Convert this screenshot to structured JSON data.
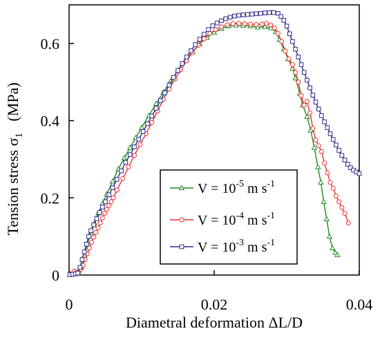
{
  "chart_data": {
    "type": "line",
    "title": "",
    "xlabel": "Diametral deformation   ΔL/D",
    "ylabel": "Tension stress  σ_1  (MPa)",
    "ylabel_parts": {
      "main": "Tension stress  σ",
      "sub": "1",
      "unit": "(MPa)"
    },
    "xlim": [
      0,
      0.04
    ],
    "ylim": [
      0,
      0.7
    ],
    "x_ticks": [
      0,
      0.02,
      0.04
    ],
    "x_tick_labels": [
      "0",
      "0.02",
      "0.04"
    ],
    "y_ticks": [
      0,
      0.2,
      0.4,
      0.6
    ],
    "y_tick_labels": [
      "0",
      "0.2",
      "0.4",
      "0.6"
    ],
    "grid": false,
    "legend_position": "lower-center",
    "series": [
      {
        "name": "V = 10^-5 m s^-1",
        "legend": {
          "pre": "V = 10",
          "exp": "-5",
          "mid": "m s",
          "exp2": "-1"
        },
        "color": "#1e8a1e",
        "marker": "triangle",
        "points": [
          [
            0.0001,
            0.001
          ],
          [
            0.0005,
            0.004
          ],
          [
            0.0009,
            0.005
          ],
          [
            0.0013,
            0.005
          ],
          [
            0.0017,
            0.02
          ],
          [
            0.0021,
            0.05
          ],
          [
            0.0026,
            0.085
          ],
          [
            0.003,
            0.11
          ],
          [
            0.0035,
            0.135
          ],
          [
            0.004,
            0.16
          ],
          [
            0.0046,
            0.185
          ],
          [
            0.0052,
            0.21
          ],
          [
            0.006,
            0.243
          ],
          [
            0.0068,
            0.275
          ],
          [
            0.0076,
            0.303
          ],
          [
            0.0084,
            0.33
          ],
          [
            0.0092,
            0.356
          ],
          [
            0.01,
            0.382
          ],
          [
            0.011,
            0.413
          ],
          [
            0.012,
            0.444
          ],
          [
            0.013,
            0.474
          ],
          [
            0.014,
            0.503
          ],
          [
            0.015,
            0.53
          ],
          [
            0.016,
            0.555
          ],
          [
            0.017,
            0.578
          ],
          [
            0.018,
            0.599
          ],
          [
            0.019,
            0.615
          ],
          [
            0.02,
            0.628
          ],
          [
            0.021,
            0.638
          ],
          [
            0.022,
            0.645
          ],
          [
            0.023,
            0.647
          ],
          [
            0.024,
            0.646
          ],
          [
            0.025,
            0.645
          ],
          [
            0.026,
            0.642
          ],
          [
            0.027,
            0.643
          ],
          [
            0.0278,
            0.64
          ],
          [
            0.0285,
            0.63
          ],
          [
            0.029,
            0.61
          ],
          [
            0.0296,
            0.585
          ],
          [
            0.0302,
            0.56
          ],
          [
            0.0308,
            0.535
          ],
          [
            0.0312,
            0.51
          ],
          [
            0.0318,
            0.47
          ],
          [
            0.0322,
            0.44
          ],
          [
            0.0328,
            0.41
          ],
          [
            0.0333,
            0.375
          ],
          [
            0.0338,
            0.33
          ],
          [
            0.0343,
            0.28
          ],
          [
            0.0347,
            0.24
          ],
          [
            0.0351,
            0.19
          ],
          [
            0.0355,
            0.145
          ],
          [
            0.0359,
            0.1
          ],
          [
            0.0363,
            0.07
          ],
          [
            0.0367,
            0.058
          ],
          [
            0.037,
            0.052
          ]
        ]
      },
      {
        "name": "V = 10^-4 m s^-1",
        "legend": {
          "pre": "V = 10",
          "exp": "-4",
          "mid": "m s",
          "exp2": "-1"
        },
        "color": "#e8312f",
        "marker": "circle",
        "points": [
          [
            0.0003,
            0.003
          ],
          [
            0.0007,
            0.01
          ],
          [
            0.001,
            0.008
          ],
          [
            0.0013,
            0.007
          ],
          [
            0.0016,
            0.015
          ],
          [
            0.0019,
            0.025
          ],
          [
            0.0022,
            0.04
          ],
          [
            0.0025,
            0.055
          ],
          [
            0.0028,
            0.07
          ],
          [
            0.0031,
            0.085
          ],
          [
            0.0034,
            0.098
          ],
          [
            0.0037,
            0.11
          ],
          [
            0.004,
            0.122
          ],
          [
            0.0043,
            0.135
          ],
          [
            0.0046,
            0.148
          ],
          [
            0.0049,
            0.16
          ],
          [
            0.0052,
            0.17
          ],
          [
            0.0055,
            0.18
          ],
          [
            0.0058,
            0.19
          ],
          [
            0.0061,
            0.2
          ],
          [
            0.0066,
            0.22
          ],
          [
            0.0074,
            0.25
          ],
          [
            0.0082,
            0.28
          ],
          [
            0.009,
            0.31
          ],
          [
            0.0098,
            0.338
          ],
          [
            0.0106,
            0.366
          ],
          [
            0.0114,
            0.395
          ],
          [
            0.0122,
            0.425
          ],
          [
            0.013,
            0.455
          ],
          [
            0.0138,
            0.482
          ],
          [
            0.0146,
            0.508
          ],
          [
            0.0154,
            0.532
          ],
          [
            0.0162,
            0.555
          ],
          [
            0.017,
            0.576
          ],
          [
            0.0178,
            0.595
          ],
          [
            0.0186,
            0.612
          ],
          [
            0.0194,
            0.626
          ],
          [
            0.0202,
            0.636
          ],
          [
            0.021,
            0.643
          ],
          [
            0.0218,
            0.648
          ],
          [
            0.0226,
            0.651
          ],
          [
            0.0234,
            0.652
          ],
          [
            0.0242,
            0.651
          ],
          [
            0.025,
            0.65
          ],
          [
            0.0258,
            0.649
          ],
          [
            0.0266,
            0.65
          ],
          [
            0.0272,
            0.652
          ],
          [
            0.0278,
            0.648
          ],
          [
            0.0283,
            0.64
          ],
          [
            0.0288,
            0.626
          ],
          [
            0.0293,
            0.605
          ],
          [
            0.0298,
            0.58
          ],
          [
            0.0303,
            0.56
          ],
          [
            0.0308,
            0.545
          ],
          [
            0.0312,
            0.525
          ],
          [
            0.0316,
            0.5
          ],
          [
            0.032,
            0.465
          ],
          [
            0.0324,
            0.44
          ],
          [
            0.0328,
            0.45
          ],
          [
            0.0332,
            0.42
          ],
          [
            0.0336,
            0.38
          ],
          [
            0.034,
            0.35
          ],
          [
            0.0344,
            0.335
          ],
          [
            0.0348,
            0.32
          ],
          [
            0.0352,
            0.29
          ],
          [
            0.0356,
            0.265
          ],
          [
            0.036,
            0.24
          ],
          [
            0.0364,
            0.225
          ],
          [
            0.0368,
            0.205
          ],
          [
            0.0372,
            0.19
          ],
          [
            0.0376,
            0.175
          ],
          [
            0.038,
            0.16
          ],
          [
            0.0385,
            0.135
          ]
        ]
      },
      {
        "name": "V = 10^-3 m s^-1",
        "legend": {
          "pre": "V = 10",
          "exp": "-3",
          "mid": "m s",
          "exp2": "-1"
        },
        "color": "#2e2a8a",
        "marker": "square",
        "points": [
          [
            0.0001,
            0.001
          ],
          [
            0.0005,
            0.002
          ],
          [
            0.0009,
            0.003
          ],
          [
            0.0012,
            0.005
          ],
          [
            0.0015,
            0.02
          ],
          [
            0.0018,
            0.04
          ],
          [
            0.0021,
            0.06
          ],
          [
            0.0024,
            0.08
          ],
          [
            0.0027,
            0.1
          ],
          [
            0.003,
            0.115
          ],
          [
            0.0034,
            0.13
          ],
          [
            0.0038,
            0.146
          ],
          [
            0.0042,
            0.162
          ],
          [
            0.0046,
            0.176
          ],
          [
            0.005,
            0.19
          ],
          [
            0.0055,
            0.208
          ],
          [
            0.006,
            0.226
          ],
          [
            0.0066,
            0.248
          ],
          [
            0.0072,
            0.27
          ],
          [
            0.0078,
            0.292
          ],
          [
            0.0084,
            0.312
          ],
          [
            0.009,
            0.332
          ],
          [
            0.0096,
            0.352
          ],
          [
            0.0102,
            0.372
          ],
          [
            0.0108,
            0.392
          ],
          [
            0.0114,
            0.412
          ],
          [
            0.012,
            0.432
          ],
          [
            0.0126,
            0.452
          ],
          [
            0.0132,
            0.472
          ],
          [
            0.0138,
            0.492
          ],
          [
            0.0144,
            0.512
          ],
          [
            0.015,
            0.53
          ],
          [
            0.0156,
            0.548
          ],
          [
            0.0162,
            0.565
          ],
          [
            0.0168,
            0.581
          ],
          [
            0.0174,
            0.597
          ],
          [
            0.018,
            0.611
          ],
          [
            0.0186,
            0.624
          ],
          [
            0.0192,
            0.636
          ],
          [
            0.0198,
            0.646
          ],
          [
            0.0204,
            0.653
          ],
          [
            0.021,
            0.659
          ],
          [
            0.0216,
            0.664
          ],
          [
            0.0222,
            0.668
          ],
          [
            0.0228,
            0.671
          ],
          [
            0.0234,
            0.673
          ],
          [
            0.024,
            0.674
          ],
          [
            0.0246,
            0.675
          ],
          [
            0.0252,
            0.676
          ],
          [
            0.0258,
            0.677
          ],
          [
            0.0264,
            0.678
          ],
          [
            0.027,
            0.679
          ],
          [
            0.0276,
            0.68
          ],
          [
            0.0282,
            0.68
          ],
          [
            0.0288,
            0.678
          ],
          [
            0.0292,
            0.67
          ],
          [
            0.0296,
            0.66
          ],
          [
            0.03,
            0.645
          ],
          [
            0.0304,
            0.625
          ],
          [
            0.0308,
            0.605
          ],
          [
            0.0312,
            0.585
          ],
          [
            0.0316,
            0.565
          ],
          [
            0.032,
            0.545
          ],
          [
            0.0324,
            0.525
          ],
          [
            0.0328,
            0.505
          ],
          [
            0.0332,
            0.485
          ],
          [
            0.0336,
            0.466
          ],
          [
            0.034,
            0.448
          ],
          [
            0.0344,
            0.43
          ],
          [
            0.0348,
            0.413
          ],
          [
            0.0352,
            0.397
          ],
          [
            0.0356,
            0.382
          ],
          [
            0.036,
            0.366
          ],
          [
            0.0364,
            0.351
          ],
          [
            0.0368,
            0.337
          ],
          [
            0.0372,
            0.323
          ],
          [
            0.0376,
            0.31
          ],
          [
            0.038,
            0.298
          ],
          [
            0.0384,
            0.287
          ],
          [
            0.0388,
            0.278
          ],
          [
            0.0392,
            0.272
          ],
          [
            0.0396,
            0.267
          ],
          [
            0.04,
            0.263
          ]
        ]
      }
    ]
  }
}
